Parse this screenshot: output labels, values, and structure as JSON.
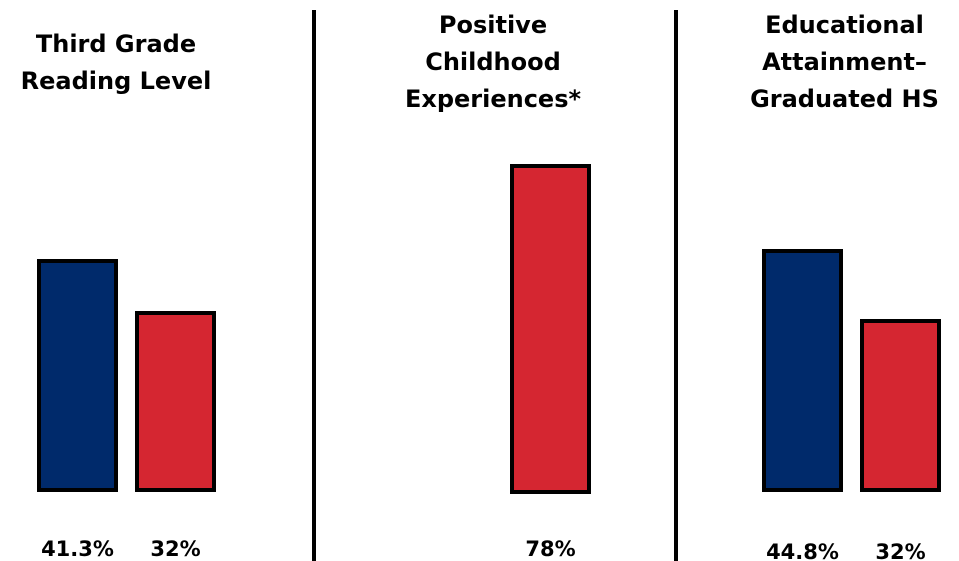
{
  "chart_data": [
    {
      "type": "bar",
      "title": "Third Grade\nReading Level",
      "values": [
        41.3,
        32
      ],
      "labels": [
        "41.3%",
        "32%"
      ],
      "colors": [
        "#002a6b",
        "#d52631"
      ]
    },
    {
      "type": "bar",
      "title": "Positive\nChildhood\nExperiences*",
      "values": [
        78
      ],
      "labels": [
        "78%"
      ],
      "colors": [
        "#d52631"
      ]
    },
    {
      "type": "bar",
      "title": "Educational\nAttainment–\nGraduated HS",
      "values": [
        44.8,
        32
      ],
      "labels": [
        "44.8%",
        "32%"
      ],
      "colors": [
        "#002a6b",
        "#d52631"
      ]
    }
  ]
}
